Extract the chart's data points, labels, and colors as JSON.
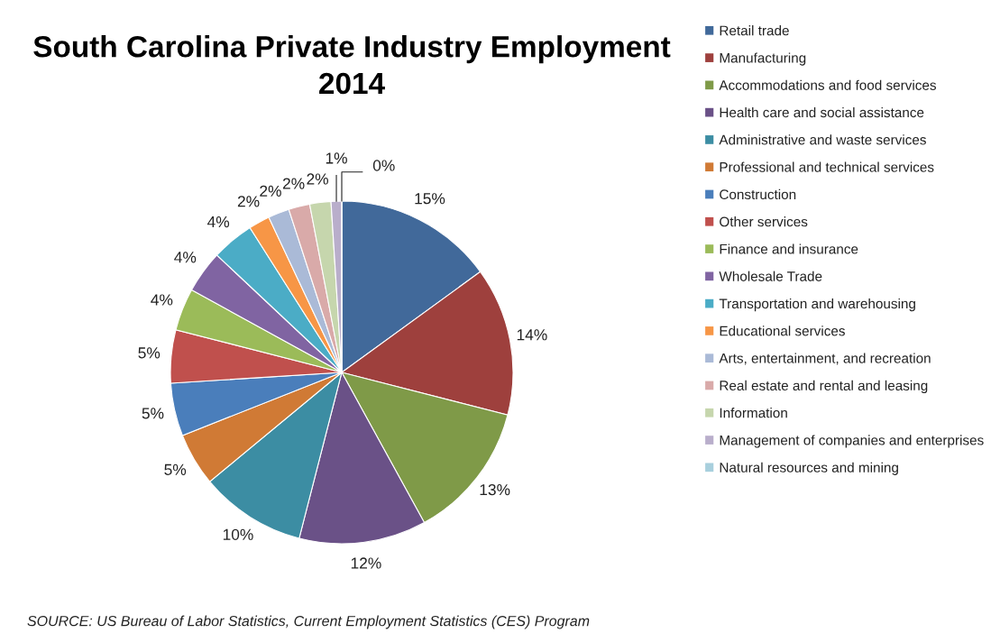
{
  "chart_data": {
    "type": "pie",
    "title": "South Carolina Private Industry Employment 2014",
    "categories": [
      "Retail trade",
      "Manufacturing",
      "Accommodations and food services",
      "Health care and social assistance",
      "Administrative and waste services",
      "Professional and technical services",
      "Construction",
      "Other services",
      "Finance and insurance",
      "Wholesale Trade",
      "Transportation and warehousing",
      "Educational services",
      "Arts, entertainment, and recreation",
      "Real estate and rental and leasing",
      "Information",
      "Management of companies and enterprises",
      "Natural resources and mining"
    ],
    "values": [
      15,
      14,
      13,
      12,
      10,
      5,
      5,
      5,
      4,
      4,
      4,
      2,
      2,
      2,
      2,
      1,
      0
    ],
    "colors": [
      "#41699a",
      "#9e403d",
      "#7f9a48",
      "#6a5187",
      "#3c8da3",
      "#d07a35",
      "#4a7ebb",
      "#c0504d",
      "#9bbb59",
      "#8064a2",
      "#4bacc6",
      "#f79646",
      "#aabad7",
      "#d9aaa9",
      "#c6d6ad",
      "#b9aecb",
      "#a8cfdd"
    ],
    "value_labels": [
      "15%",
      "14%",
      "13%",
      "12%",
      "10%",
      "5%",
      "5%",
      "5%",
      "4%",
      "4%",
      "4%",
      "2%",
      "2%",
      "2%",
      "2%",
      "1%",
      "0%"
    ],
    "legend": "right",
    "annotations": [
      "SOURCE: US Bureau of Labor Statistics, Current Employment Statistics (CES) Program"
    ]
  }
}
